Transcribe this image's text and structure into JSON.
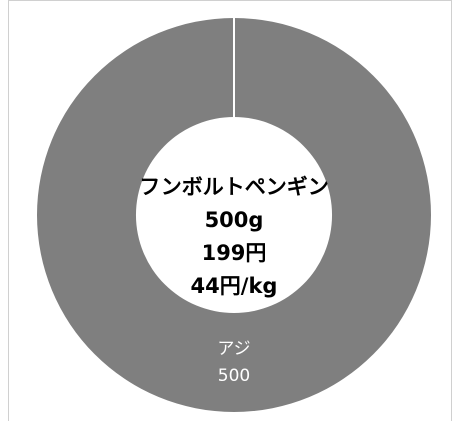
{
  "chart_data": {
    "type": "pie",
    "variant": "donut",
    "slices": [
      {
        "label": "アジ",
        "value": 500,
        "color": "#7f7f7f"
      }
    ],
    "center_text": [
      "フンボルトペンギン",
      "500g",
      "199円",
      "44円/kg"
    ],
    "legend": "none"
  }
}
